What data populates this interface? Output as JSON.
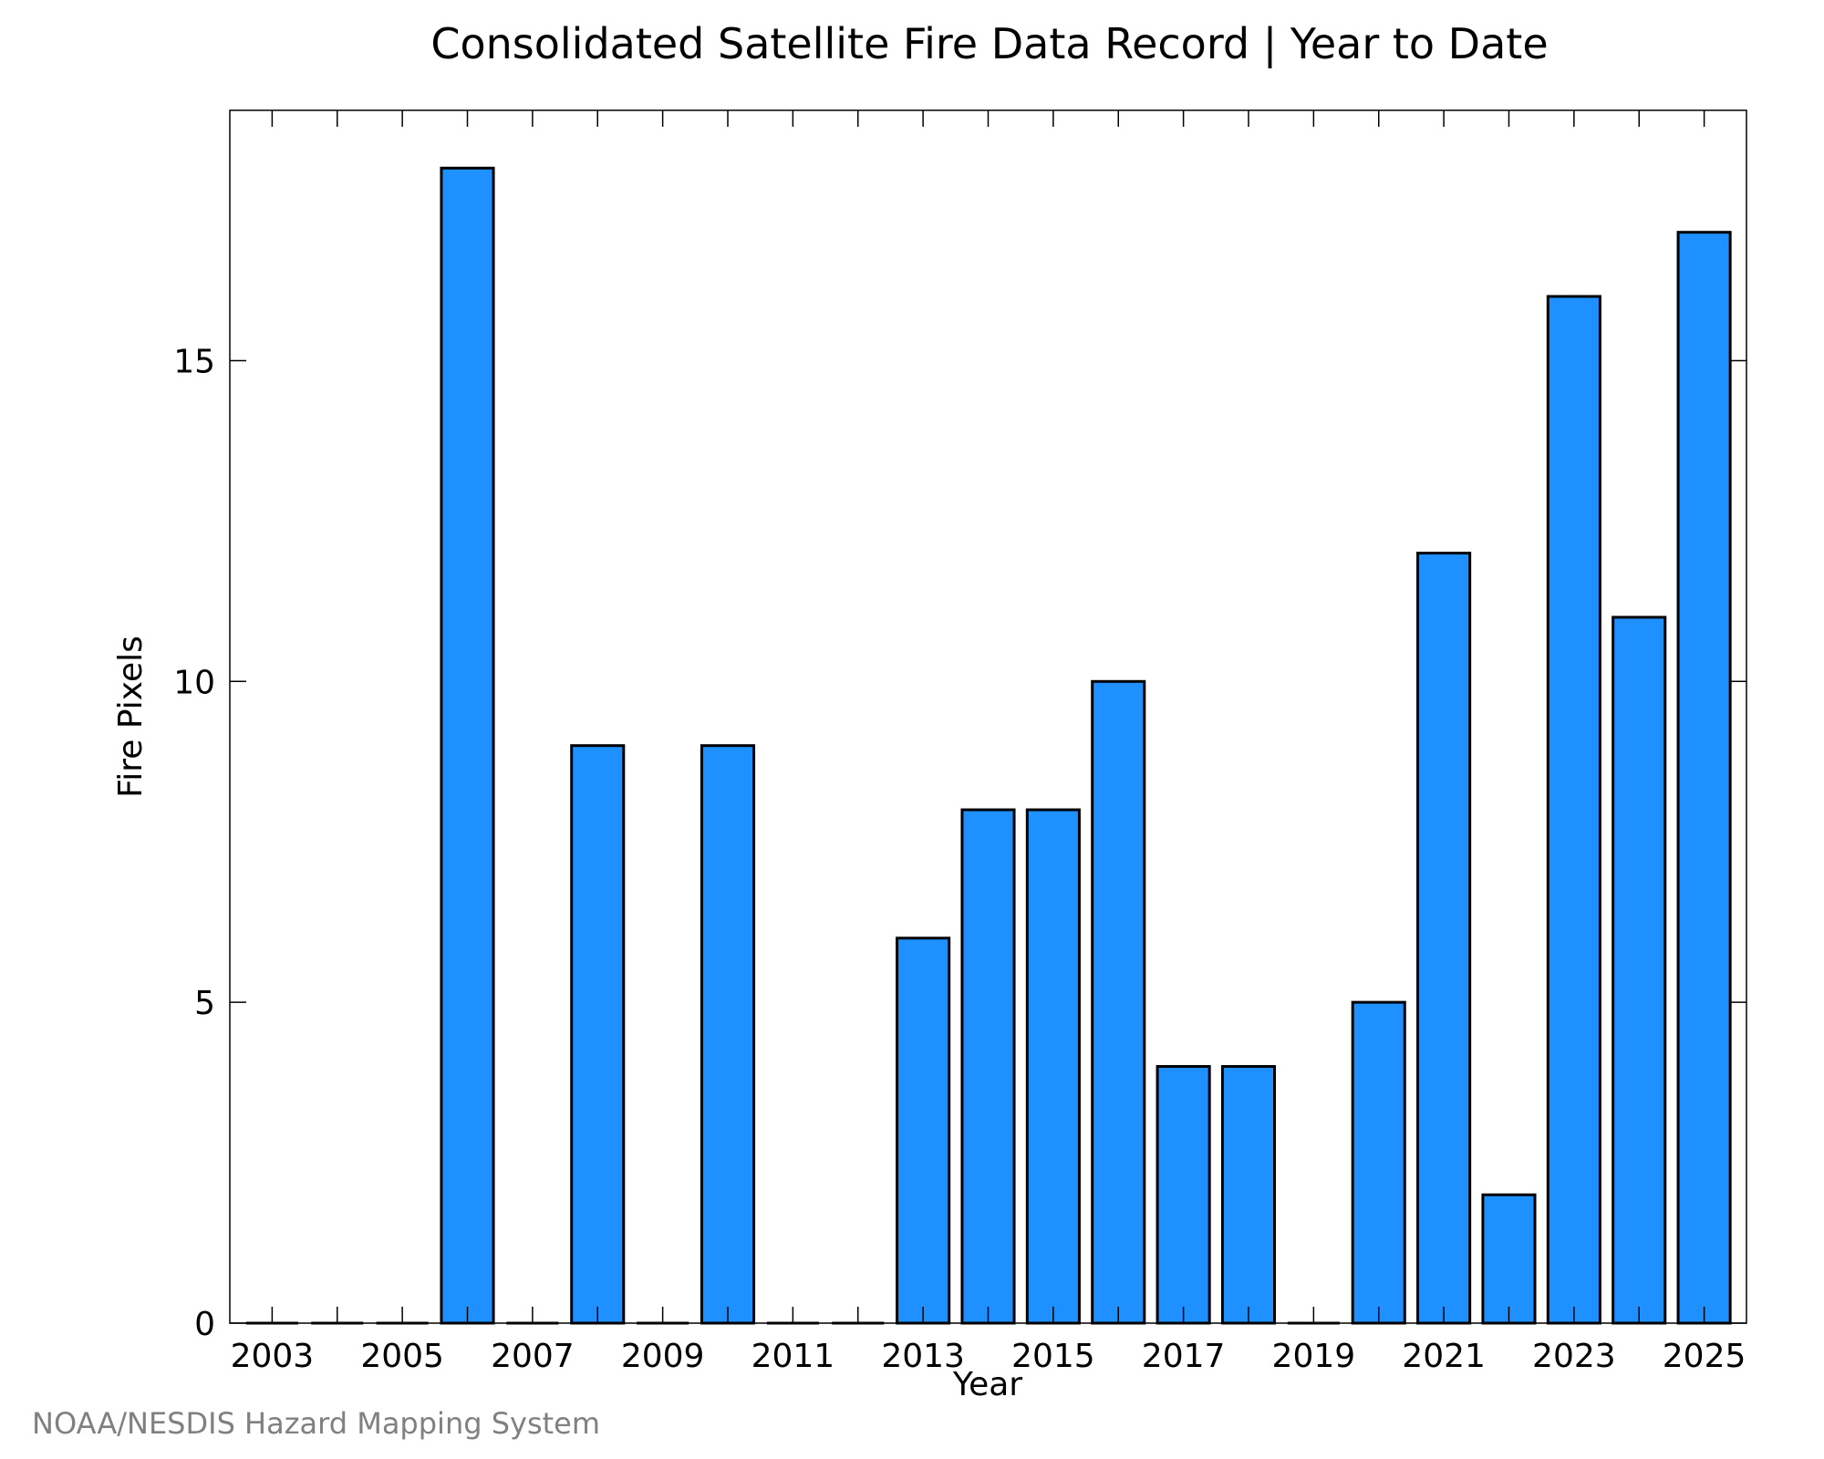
{
  "chart_data": {
    "type": "bar",
    "title": "Consolidated Satellite Fire Data Record | Year to Date",
    "xlabel": "Year",
    "ylabel": "Fire Pixels",
    "categories": [
      "2003",
      "2004",
      "2005",
      "2006",
      "2007",
      "2008",
      "2009",
      "2010",
      "2011",
      "2012",
      "2013",
      "2014",
      "2015",
      "2016",
      "2017",
      "2018",
      "2019",
      "2020",
      "2021",
      "2022",
      "2023",
      "2024",
      "2025"
    ],
    "values": [
      0,
      0,
      0,
      18,
      0,
      9,
      0,
      9,
      0,
      0,
      6,
      8,
      8,
      10,
      4,
      4,
      0,
      5,
      12,
      2,
      16,
      11,
      17
    ],
    "x_tick_labels": [
      "2003",
      "2005",
      "2007",
      "2009",
      "2011",
      "2013",
      "2015",
      "2017",
      "2019",
      "2021",
      "2023",
      "2025"
    ],
    "y_ticks": [
      0,
      5,
      10,
      15
    ],
    "y_tick_labels": [
      "0",
      "5",
      "10",
      "15"
    ],
    "ylim": [
      0,
      18.9
    ],
    "grid": false,
    "legend": "none",
    "bar_color": "#1E90FF",
    "edge_color": "#000000"
  },
  "credit": "NOAA/NESDIS Hazard Mapping System"
}
